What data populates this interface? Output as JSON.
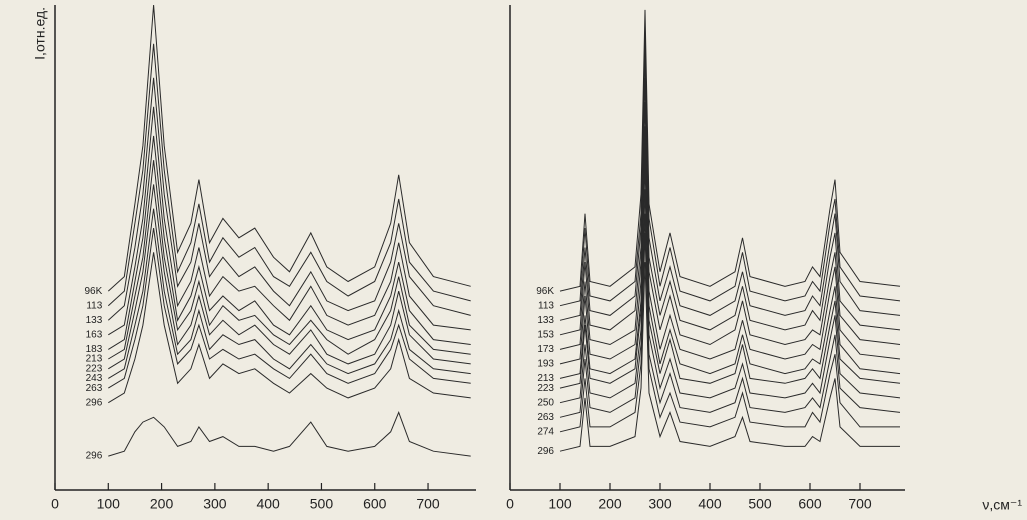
{
  "chart_data": [
    {
      "type": "line",
      "y_label": "I,отн.ед.",
      "color": "#2a2a2a",
      "xlim": [
        0,
        790
      ],
      "xticks": [
        0,
        100,
        200,
        300,
        400,
        500,
        600,
        700
      ],
      "ylim": [
        0,
        100
      ],
      "x": [
        100,
        130,
        150,
        165,
        185,
        205,
        230,
        255,
        270,
        290,
        315,
        345,
        375,
        410,
        440,
        480,
        510,
        550,
        600,
        630,
        645,
        665,
        710,
        780
      ],
      "series": [
        {
          "name": "96K",
          "values": [
            41,
            44,
            59,
            71,
            100,
            71,
            49,
            55,
            64,
            51,
            56,
            52,
            54,
            48,
            45,
            53,
            46,
            43,
            46,
            55,
            65,
            51,
            44,
            42
          ]
        },
        {
          "name": "113",
          "values": [
            38,
            41,
            55,
            66,
            92,
            66,
            45,
            51,
            59,
            47,
            52,
            48,
            50,
            44,
            42,
            49,
            43,
            40,
            43,
            51,
            60,
            47,
            41,
            39
          ]
        },
        {
          "name": "133",
          "values": [
            35,
            38,
            50,
            61,
            85,
            61,
            42,
            47,
            55,
            44,
            48,
            44,
            46,
            41,
            38,
            45,
            39,
            37,
            39,
            47,
            55,
            44,
            38,
            36
          ]
        },
        {
          "name": "163",
          "values": [
            32,
            34,
            46,
            56,
            79,
            56,
            38,
            43,
            50,
            40,
            44,
            41,
            42,
            38,
            35,
            42,
            36,
            34,
            36,
            43,
            51,
            40,
            34,
            33
          ]
        },
        {
          "name": "183",
          "values": [
            29,
            31,
            43,
            52,
            73,
            52,
            35,
            40,
            46,
            37,
            40,
            37,
            39,
            34,
            32,
            38,
            33,
            31,
            33,
            40,
            47,
            37,
            31,
            30
          ]
        },
        {
          "name": "213",
          "values": [
            27,
            29,
            40,
            48,
            68,
            48,
            33,
            37,
            43,
            34,
            38,
            35,
            36,
            32,
            30,
            35,
            31,
            28,
            31,
            37,
            44,
            34,
            29,
            28
          ]
        },
        {
          "name": "223",
          "values": [
            25,
            27,
            37,
            45,
            63,
            45,
            30,
            34,
            40,
            32,
            35,
            32,
            34,
            30,
            28,
            33,
            28,
            26,
            28,
            34,
            41,
            32,
            27,
            26
          ]
        },
        {
          "name": "243",
          "values": [
            23,
            25,
            34,
            41,
            58,
            41,
            28,
            31,
            37,
            29,
            32,
            30,
            31,
            27,
            25,
            30,
            26,
            24,
            26,
            31,
            37,
            29,
            25,
            24
          ]
        },
        {
          "name": "263",
          "values": [
            21,
            23,
            31,
            38,
            54,
            38,
            26,
            29,
            34,
            27,
            29,
            27,
            28,
            25,
            23,
            28,
            24,
            22,
            24,
            29,
            34,
            27,
            23,
            22
          ]
        },
        {
          "name": "296",
          "values": [
            18,
            20,
            27,
            34,
            49,
            34,
            22,
            25,
            30,
            23,
            26,
            24,
            25,
            22,
            20,
            24,
            21,
            19,
            21,
            25,
            31,
            23,
            20,
            19
          ]
        },
        {
          "name": "296",
          "values": [
            7,
            8,
            12,
            14,
            15,
            13,
            9,
            10,
            13,
            10,
            11,
            9,
            9,
            8,
            9,
            14,
            9,
            8,
            9,
            12,
            16,
            10,
            8,
            7
          ]
        }
      ]
    },
    {
      "type": "line",
      "x_label": "ν,см⁻¹",
      "color": "#2a2a2a",
      "xlim": [
        0,
        790
      ],
      "xticks": [
        0,
        100,
        200,
        300,
        400,
        500,
        600,
        700
      ],
      "ylim": [
        0,
        100
      ],
      "x": [
        100,
        140,
        150,
        160,
        200,
        250,
        262,
        270,
        278,
        300,
        320,
        340,
        400,
        450,
        465,
        480,
        550,
        590,
        605,
        620,
        640,
        650,
        660,
        700,
        780
      ],
      "series": [
        {
          "name": "96K",
          "values": [
            41,
            42,
            57,
            43,
            42,
            46,
            61,
            99,
            59,
            45,
            53,
            44,
            42,
            45,
            52,
            44,
            42,
            43,
            46,
            44,
            58,
            64,
            49,
            43,
            42
          ]
        },
        {
          "name": "113",
          "values": [
            38,
            39,
            54,
            40,
            39,
            43,
            57,
            94,
            56,
            42,
            50,
            41,
            39,
            42,
            49,
            41,
            39,
            40,
            43,
            41,
            55,
            60,
            46,
            40,
            39
          ]
        },
        {
          "name": "133",
          "values": [
            35,
            36,
            50,
            37,
            36,
            40,
            54,
            90,
            52,
            39,
            46,
            38,
            36,
            39,
            45,
            38,
            36,
            37,
            40,
            38,
            51,
            57,
            43,
            37,
            36
          ]
        },
        {
          "name": "153",
          "values": [
            32,
            33,
            47,
            34,
            33,
            37,
            50,
            85,
            48,
            36,
            43,
            35,
            33,
            36,
            42,
            35,
            33,
            34,
            37,
            35,
            48,
            53,
            39,
            34,
            33
          ]
        },
        {
          "name": "173",
          "values": [
            29,
            30,
            43,
            31,
            30,
            33,
            47,
            80,
            45,
            33,
            40,
            32,
            30,
            33,
            39,
            32,
            30,
            31,
            33,
            32,
            44,
            49,
            36,
            31,
            30
          ]
        },
        {
          "name": "193",
          "values": [
            26,
            27,
            40,
            28,
            27,
            30,
            43,
            75,
            41,
            29,
            36,
            29,
            27,
            29,
            35,
            29,
            27,
            28,
            30,
            29,
            41,
            46,
            33,
            28,
            27
          ]
        },
        {
          "name": "213",
          "values": [
            23,
            24,
            36,
            25,
            24,
            27,
            39,
            71,
            38,
            26,
            33,
            26,
            24,
            26,
            32,
            26,
            24,
            25,
            27,
            26,
            37,
            42,
            30,
            25,
            24
          ]
        },
        {
          "name": "223",
          "values": [
            21,
            22,
            34,
            23,
            22,
            25,
            37,
            67,
            35,
            24,
            31,
            23,
            22,
            24,
            30,
            23,
            22,
            23,
            25,
            23,
            34,
            39,
            27,
            23,
            22
          ]
        },
        {
          "name": "250",
          "values": [
            18,
            19,
            30,
            20,
            19,
            22,
            33,
            62,
            32,
            21,
            27,
            20,
            19,
            21,
            26,
            20,
            19,
            20,
            22,
            20,
            31,
            36,
            24,
            20,
            19
          ]
        },
        {
          "name": "263",
          "values": [
            15,
            16,
            27,
            17,
            16,
            19,
            30,
            57,
            28,
            18,
            24,
            17,
            16,
            18,
            23,
            17,
            16,
            17,
            19,
            17,
            27,
            32,
            21,
            17,
            16
          ]
        },
        {
          "name": "274",
          "values": [
            12,
            13,
            23,
            13,
            13,
            16,
            26,
            53,
            25,
            15,
            20,
            14,
            13,
            15,
            20,
            14,
            13,
            13,
            16,
            14,
            24,
            28,
            18,
            13,
            13
          ]
        },
        {
          "name": "296",
          "values": [
            8,
            9,
            19,
            9,
            9,
            11,
            21,
            47,
            20,
            11,
            16,
            10,
            9,
            11,
            15,
            10,
            9,
            9,
            11,
            10,
            19,
            23,
            13,
            9,
            9
          ]
        }
      ]
    }
  ]
}
